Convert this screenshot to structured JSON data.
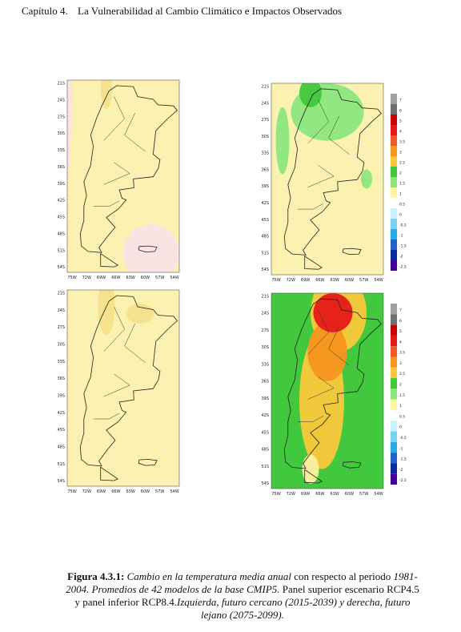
{
  "header": {
    "chapter": "Capítulo 4.",
    "title": "La Vulnerabilidad al Cambio Climático e Impactos Observados"
  },
  "maps": {
    "lat_labels": [
      "21S",
      "24S",
      "27S",
      "30S",
      "33S",
      "36S",
      "39S",
      "42S",
      "45S",
      "48S",
      "51S",
      "54S"
    ],
    "lon_labels": [
      "75W",
      "72W",
      "69W",
      "66W",
      "63W",
      "60W",
      "57W",
      "54W"
    ],
    "colorbar_labels": [
      "7",
      "6",
      "5",
      "4",
      "3.5",
      "3",
      "2.5",
      "2",
      "1.5",
      "1",
      "0.5",
      "0",
      "-0.5",
      "-1",
      "-1.5",
      "-2",
      "-2.5"
    ]
  },
  "caption": {
    "label": "Figura 4.3.1:",
    "parts": [
      "Cambio en la temperatura media anual",
      "con respecto al periodo",
      "1981-2004. Promedios de 42 modelos de la base CMIP5.",
      "Panel superior escenario RCP4.5 y panel inferior RCP8.4.",
      "Izquierda, futuro cercano (2015-2039) y derecha, futuro lejano (2075-2099)."
    ]
  }
}
